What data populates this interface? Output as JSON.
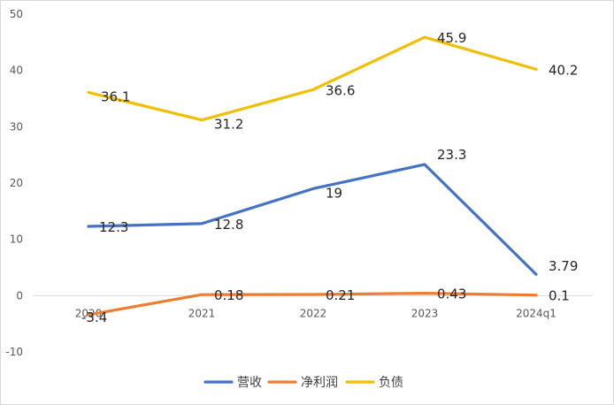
{
  "chart_data": {
    "type": "line",
    "categories": [
      "2020",
      "2021",
      "2022",
      "2023",
      "2024q1"
    ],
    "series": [
      {
        "name": "营收",
        "values": [
          12.3,
          12.8,
          19,
          23.3,
          3.79
        ],
        "labels": [
          "12.3",
          "12.8",
          "19",
          "23.3",
          "3.79"
        ],
        "color": "#4472C4"
      },
      {
        "name": "净利润",
        "values": [
          -3.4,
          0.18,
          0.21,
          0.43,
          0.1
        ],
        "labels": [
          "-3.4",
          "0.18",
          "0.21",
          "0.43",
          "0.1"
        ],
        "color": "#ED7D31"
      },
      {
        "name": "负债",
        "values": [
          36.1,
          31.2,
          36.6,
          45.9,
          40.2
        ],
        "labels": [
          "36.1",
          "31.2",
          "36.6",
          "45.9",
          "40.2"
        ],
        "color": "#F2BE00"
      }
    ],
    "yticks": [
      -10,
      0,
      10,
      20,
      30,
      40,
      50
    ],
    "ylim": [
      -10,
      50
    ],
    "title": "",
    "xlabel": "",
    "ylabel": "",
    "legend_position": "bottom",
    "grid": false
  }
}
